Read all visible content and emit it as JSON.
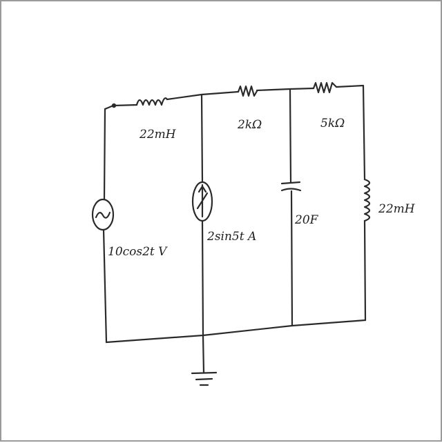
{
  "diagram": {
    "ink_color": "#2a2a2a",
    "components": {
      "inductor_series": {
        "label": "22mH",
        "icon": "inductor-icon"
      },
      "voltage_source": {
        "label": "10cos2t V",
        "icon": "ac-voltage-source-icon"
      },
      "current_source": {
        "label": "2sin5t A",
        "icon": "current-source-icon"
      },
      "resistor_2k": {
        "label": "2kΩ",
        "icon": "resistor-icon"
      },
      "resistor_5k": {
        "label": "5kΩ",
        "icon": "resistor-icon"
      },
      "capacitor": {
        "label": "20F",
        "icon": "capacitor-icon"
      },
      "inductor_shunt": {
        "label": "22mH",
        "icon": "inductor-icon"
      },
      "ground": {
        "icon": "ground-icon"
      }
    }
  }
}
